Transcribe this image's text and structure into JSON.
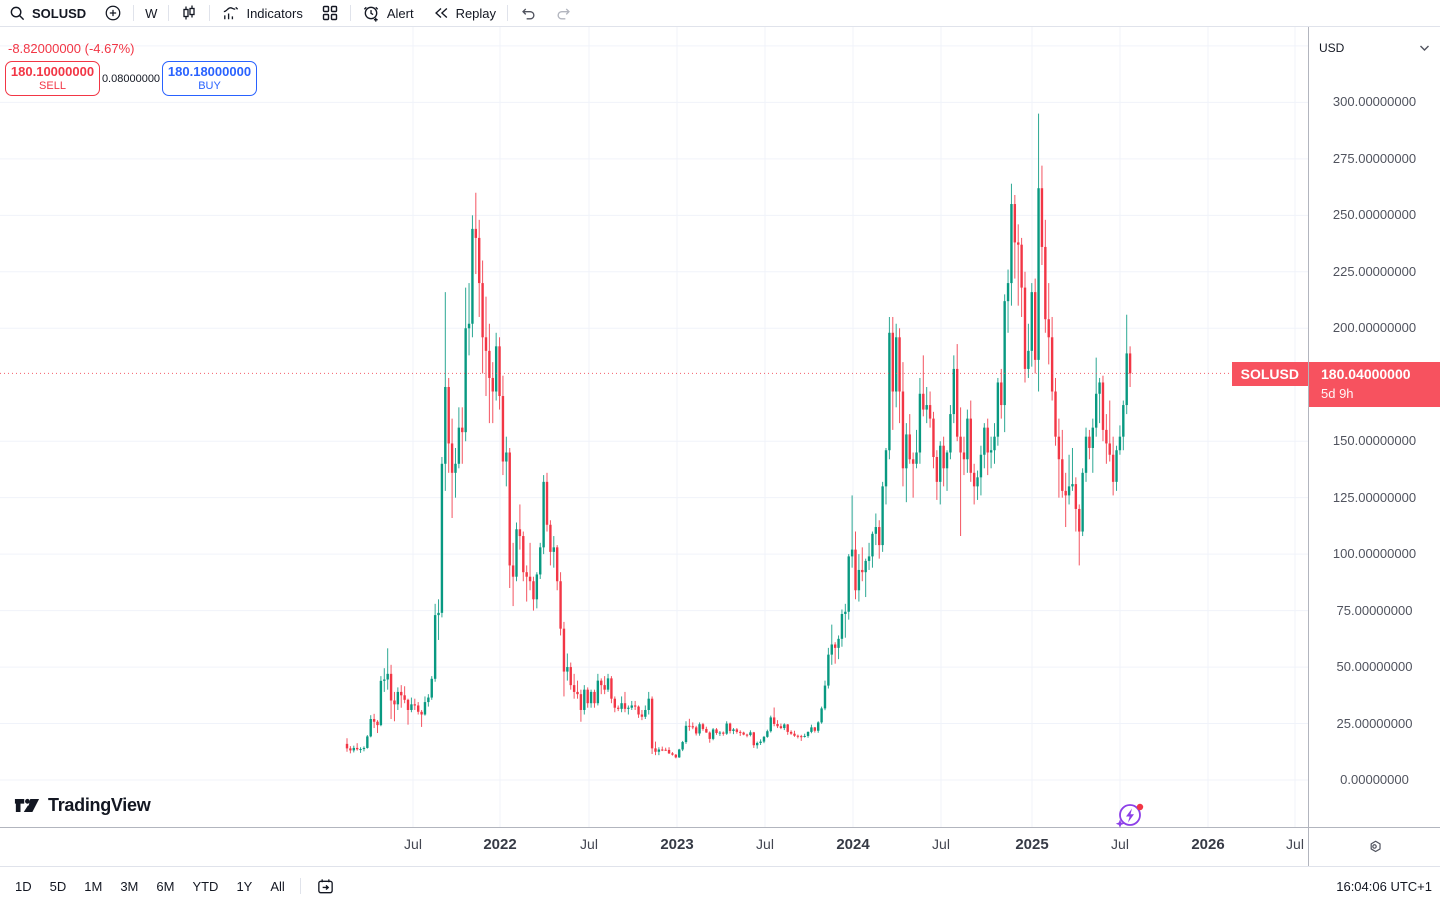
{
  "toolbar": {
    "symbol": "SOLUSD",
    "interval": "W",
    "indicators_label": "Indicators",
    "alert_label": "Alert",
    "replay_label": "Replay"
  },
  "quote": {
    "change_text": "-8.82000000 (-4.67%)",
    "sell_price": "180.10000000",
    "sell_label": "SELL",
    "spread": "0.08000000",
    "buy_price": "180.18000000",
    "buy_label": "BUY"
  },
  "price_axis": {
    "currency": "USD"
  },
  "last_price": {
    "symbol_label": "SOLUSD",
    "price": "180.04000000",
    "countdown": "5d 9h",
    "value": 180.04
  },
  "footer": {
    "ranges": [
      "1D",
      "5D",
      "1M",
      "3M",
      "6M",
      "YTD",
      "1Y",
      "All"
    ],
    "clock": "16:04:06 UTC+1"
  },
  "branding": {
    "logo_text": "TradingView"
  },
  "colors": {
    "up": "#089981",
    "down": "#f23645",
    "buy": "#2962ff",
    "sell": "#f23645",
    "badge": "#f7525f",
    "grid": "#f0f3fa",
    "axis_text": "#50535e"
  },
  "chart_data": {
    "type": "candlestick",
    "symbol": "SOLUSD",
    "interval": "W",
    "currency": "USD",
    "title": "SOLUSD weekly candlestick chart",
    "ylim": [
      0,
      330
    ],
    "grid": true,
    "last_price_value": 180.04,
    "y_ticks": [
      {
        "text": "300.00000000",
        "value": 300
      },
      {
        "text": "275.00000000",
        "value": 275
      },
      {
        "text": "250.00000000",
        "value": 250
      },
      {
        "text": "225.00000000",
        "value": 225
      },
      {
        "text": "200.00000000",
        "value": 200
      },
      {
        "text": "150.00000000",
        "value": 150
      },
      {
        "text": "125.00000000",
        "value": 125
      },
      {
        "text": "100.00000000",
        "value": 100
      },
      {
        "text": "75.00000000",
        "value": 75
      },
      {
        "text": "50.00000000",
        "value": 50
      },
      {
        "text": "25.00000000",
        "value": 25
      },
      {
        "text": "0.00000000",
        "value": 0
      }
    ],
    "x_ticks": [
      {
        "label": "Jul",
        "x": 413,
        "bold": false
      },
      {
        "label": "2022",
        "x": 500,
        "bold": true
      },
      {
        "label": "Jul",
        "x": 589,
        "bold": false
      },
      {
        "label": "2023",
        "x": 677,
        "bold": true
      },
      {
        "label": "Jul",
        "x": 765,
        "bold": false
      },
      {
        "label": "2024",
        "x": 853,
        "bold": true
      },
      {
        "label": "Jul",
        "x": 941,
        "bold": false
      },
      {
        "label": "2025",
        "x": 1032,
        "bold": true
      },
      {
        "label": "Jul",
        "x": 1120,
        "bold": false
      },
      {
        "label": "2026",
        "x": 1208,
        "bold": true
      },
      {
        "label": "Jul",
        "x": 1295,
        "bold": false
      }
    ],
    "layout": {
      "x_start": 347,
      "x_step": 3.39,
      "y_base": 753,
      "y_scale": 2.2587,
      "body_width": 2.4
    },
    "candles": [
      [
        16,
        18.5,
        12.5,
        14
      ],
      [
        14,
        15,
        11.8,
        13.1
      ],
      [
        13.1,
        15.2,
        12.2,
        14.2
      ],
      [
        14.2,
        16.3,
        13,
        13.6
      ],
      [
        13.6,
        14.5,
        12,
        13.7
      ],
      [
        13.7,
        14.9,
        12.7,
        14.2
      ],
      [
        14.2,
        19.9,
        13.9,
        19.3
      ],
      [
        19.3,
        28.7,
        18.9,
        27
      ],
      [
        27,
        29.3,
        23,
        25.8
      ],
      [
        25.8,
        26.5,
        20.8,
        24.3
      ],
      [
        24.3,
        46,
        23.8,
        43.9
      ],
      [
        43.9,
        49.5,
        39,
        44.5
      ],
      [
        44.5,
        58.3,
        40,
        47
      ],
      [
        47,
        51,
        27,
        35.2
      ],
      [
        35.2,
        39,
        26,
        33.5
      ],
      [
        33.5,
        41,
        31,
        39
      ],
      [
        39,
        42,
        32,
        37.5
      ],
      [
        37.5,
        41.5,
        34,
        35.5
      ],
      [
        35.5,
        36,
        24.5,
        31
      ],
      [
        31,
        36.5,
        30,
        33.5
      ],
      [
        33.5,
        36,
        31,
        33
      ],
      [
        33,
        34.5,
        29,
        30.2
      ],
      [
        30.2,
        31,
        23.5,
        29
      ],
      [
        29,
        37,
        28.5,
        34.5
      ],
      [
        34.5,
        38,
        32.5,
        36.5
      ],
      [
        36.5,
        46,
        35.5,
        44.8
      ],
      [
        44.8,
        78,
        43.5,
        73
      ],
      [
        73,
        80,
        62,
        74
      ],
      [
        74,
        143,
        72,
        140
      ],
      [
        140,
        216,
        128,
        174
      ],
      [
        174,
        178,
        136,
        149
      ],
      [
        149,
        160,
        116,
        136
      ],
      [
        136,
        147,
        125,
        140
      ],
      [
        140,
        165,
        138,
        156
      ],
      [
        156,
        165,
        140,
        154
      ],
      [
        154,
        218,
        150,
        200
      ],
      [
        200,
        220,
        188,
        202
      ],
      [
        202,
        250,
        196,
        244
      ],
      [
        244,
        260,
        224,
        240
      ],
      [
        240,
        248,
        205,
        220
      ],
      [
        220,
        230,
        180,
        196
      ],
      [
        196,
        214,
        170,
        190
      ],
      [
        190,
        202,
        158,
        178
      ],
      [
        178,
        185,
        158,
        172
      ],
      [
        172,
        198,
        168,
        192
      ],
      [
        192,
        196,
        164,
        170
      ],
      [
        170,
        179,
        135,
        141
      ],
      [
        141,
        152,
        130,
        145
      ],
      [
        145,
        147,
        85,
        95
      ],
      [
        95,
        105,
        77,
        90
      ],
      [
        90,
        114,
        88,
        111
      ],
      [
        111,
        122,
        102,
        108
      ],
      [
        108,
        110,
        88,
        92
      ],
      [
        92,
        95,
        79,
        90
      ],
      [
        90,
        105,
        84,
        88
      ],
      [
        88,
        90,
        75,
        80
      ],
      [
        80,
        92,
        76,
        91
      ],
      [
        91,
        105,
        89,
        103
      ],
      [
        103,
        135,
        100,
        132
      ],
      [
        132,
        136,
        110,
        113
      ],
      [
        113,
        115,
        95,
        101
      ],
      [
        101,
        108,
        94,
        103
      ],
      [
        103,
        104,
        84,
        88
      ],
      [
        88,
        92,
        64,
        67
      ],
      [
        67,
        70,
        37,
        48
      ],
      [
        48,
        56,
        44,
        50
      ],
      [
        50,
        52,
        40,
        42
      ],
      [
        42,
        47,
        36,
        39
      ],
      [
        39,
        44,
        36,
        38
      ],
      [
        38,
        40,
        25.8,
        31
      ],
      [
        31,
        42,
        29,
        40
      ],
      [
        40,
        41,
        32,
        34
      ],
      [
        34,
        40,
        32,
        39
      ],
      [
        39,
        40,
        32,
        34
      ],
      [
        34,
        47,
        33,
        44
      ],
      [
        44,
        45,
        38,
        42
      ],
      [
        42,
        46,
        38,
        40
      ],
      [
        40,
        47,
        39,
        45
      ],
      [
        45,
        46,
        34,
        36
      ],
      [
        36,
        37,
        30,
        32
      ],
      [
        32,
        33,
        30.5,
        31.5
      ],
      [
        31.5,
        37,
        30,
        34
      ],
      [
        34,
        39,
        30,
        31.5
      ],
      [
        31.5,
        33,
        29,
        32
      ],
      [
        32,
        35,
        31,
        33
      ],
      [
        33,
        35,
        31,
        32.5
      ],
      [
        32.5,
        33,
        27.5,
        29
      ],
      [
        29,
        31,
        26.5,
        28
      ],
      [
        28,
        33,
        27,
        31
      ],
      [
        31,
        39,
        29,
        36
      ],
      [
        36,
        37,
        11.5,
        14
      ],
      [
        14,
        17,
        11,
        12.5
      ],
      [
        12.5,
        14.5,
        11,
        13.5
      ],
      [
        13.5,
        14.8,
        12.8,
        13.4
      ],
      [
        13.4,
        14.3,
        12.9,
        13.3
      ],
      [
        13.3,
        14.5,
        11.5,
        11.8
      ],
      [
        11.8,
        12.4,
        10.8,
        11.2
      ],
      [
        11.2,
        11.5,
        9.6,
        10
      ],
      [
        10,
        13.8,
        9.8,
        13.5
      ],
      [
        13.5,
        17.3,
        12.8,
        16.8
      ],
      [
        16.8,
        26,
        16,
        24
      ],
      [
        24,
        27.1,
        21.8,
        23.8
      ],
      [
        23.8,
        25.5,
        22.5,
        23.3
      ],
      [
        23.3,
        24,
        19.7,
        20.6
      ],
      [
        20.6,
        25.5,
        19.6,
        24.7
      ],
      [
        24.7,
        25.3,
        21.8,
        22.6
      ],
      [
        22.6,
        23.6,
        20.9,
        21
      ],
      [
        21,
        21.5,
        16.5,
        18.2
      ],
      [
        18.2,
        23,
        17.6,
        22.4
      ],
      [
        22.4,
        23,
        20,
        20.8
      ],
      [
        20.8,
        21.7,
        19.5,
        21
      ],
      [
        21,
        21.5,
        19.6,
        20.5
      ],
      [
        20.5,
        26,
        20,
        25
      ],
      [
        25,
        25.4,
        20.6,
        21.7
      ],
      [
        21.7,
        23,
        20.3,
        22.4
      ],
      [
        22.4,
        23,
        20.5,
        21.3
      ],
      [
        21.3,
        22,
        19.5,
        21
      ],
      [
        21,
        21.4,
        19.8,
        20.1
      ],
      [
        20.1,
        20.5,
        18.9,
        19.9
      ],
      [
        19.9,
        22,
        19.3,
        21.1
      ],
      [
        21.1,
        21.3,
        14.2,
        15.4
      ],
      [
        15.4,
        17,
        13.9,
        16.4
      ],
      [
        16.4,
        18,
        15.5,
        17
      ],
      [
        17,
        19.5,
        16.3,
        19.1
      ],
      [
        19.1,
        22.3,
        18.7,
        21.6
      ],
      [
        21.6,
        28.5,
        21,
        27.7
      ],
      [
        27.7,
        32.1,
        23.8,
        24.8
      ],
      [
        24.8,
        26.5,
        23,
        23.8
      ],
      [
        23.8,
        25,
        22.5,
        23
      ],
      [
        23,
        25.1,
        22.1,
        24.6
      ],
      [
        24.6,
        24.8,
        20,
        21.3
      ],
      [
        21.3,
        22,
        20,
        20.5
      ],
      [
        20.5,
        21.8,
        19.1,
        19.6
      ],
      [
        19.6,
        20.1,
        18.4,
        19.4
      ],
      [
        19.4,
        20,
        17.3,
        19.3
      ],
      [
        19.3,
        20.5,
        18.8,
        19.5
      ],
      [
        19.5,
        21.5,
        18.7,
        21.3
      ],
      [
        21.3,
        24.5,
        20.7,
        23.3
      ],
      [
        23.3,
        23.5,
        21,
        21.8
      ],
      [
        21.8,
        26,
        20.9,
        25.5
      ],
      [
        25.5,
        32.5,
        24.9,
        31.7
      ],
      [
        31.7,
        44,
        30.9,
        41.8
      ],
      [
        41.8,
        58.5,
        40.5,
        55.5
      ],
      [
        55.5,
        68.8,
        51,
        60
      ],
      [
        60,
        61,
        51.5,
        58.5
      ],
      [
        58.5,
        64,
        53.5,
        62.5
      ],
      [
        62.5,
        75.5,
        59,
        73.5
      ],
      [
        73.5,
        78,
        63,
        74.5
      ],
      [
        74.5,
        100,
        71,
        99
      ],
      [
        99,
        126,
        94,
        102
      ],
      [
        102,
        110,
        80,
        84
      ],
      [
        84,
        100,
        79,
        93
      ],
      [
        93,
        103,
        88,
        92
      ],
      [
        92,
        98,
        81,
        97
      ],
      [
        97,
        105,
        93,
        99
      ],
      [
        99,
        110,
        94,
        109
      ],
      [
        109,
        118,
        104,
        112
      ],
      [
        112,
        115,
        98,
        104
      ],
      [
        104,
        132,
        101,
        130
      ],
      [
        130,
        147,
        122,
        146
      ],
      [
        146,
        205,
        142,
        198
      ],
      [
        198,
        205,
        155,
        172
      ],
      [
        172,
        202,
        165,
        196
      ],
      [
        196,
        200,
        158,
        172
      ],
      [
        172,
        185,
        130,
        138
      ],
      [
        138,
        158,
        123,
        153
      ],
      [
        153,
        162,
        140,
        142
      ],
      [
        142,
        145,
        125,
        140
      ],
      [
        140,
        155,
        138,
        145
      ],
      [
        145,
        178,
        140,
        171
      ],
      [
        171,
        188,
        161,
        164
      ],
      [
        164,
        174,
        158,
        166
      ],
      [
        166,
        172,
        156,
        160
      ],
      [
        160,
        163,
        138,
        143
      ],
      [
        143,
        146,
        124,
        132
      ],
      [
        132,
        150,
        122,
        148
      ],
      [
        148,
        152,
        130,
        138
      ],
      [
        138,
        146,
        128,
        145
      ],
      [
        145,
        166,
        142,
        162
      ],
      [
        162,
        188,
        158,
        182
      ],
      [
        182,
        193,
        150,
        152
      ],
      [
        152,
        165,
        108,
        145
      ],
      [
        145,
        152,
        135,
        142
      ],
      [
        142,
        164,
        136,
        160
      ],
      [
        160,
        168,
        132,
        136
      ],
      [
        136,
        140,
        122,
        130
      ],
      [
        130,
        137,
        124,
        134
      ],
      [
        134,
        148,
        126,
        144
      ],
      [
        144,
        158,
        138,
        156
      ],
      [
        156,
        160,
        135,
        145
      ],
      [
        145,
        152,
        138,
        146
      ],
      [
        146,
        158,
        140,
        152
      ],
      [
        152,
        178,
        148,
        176
      ],
      [
        176,
        182,
        160,
        166
      ],
      [
        166,
        215,
        154,
        212
      ],
      [
        212,
        226,
        198,
        220
      ],
      [
        220,
        264,
        210,
        255
      ],
      [
        255,
        259,
        222,
        238
      ],
      [
        238,
        246,
        210,
        237
      ],
      [
        237,
        240,
        205,
        218
      ],
      [
        218,
        225,
        176,
        182
      ],
      [
        182,
        202,
        178,
        190
      ],
      [
        190,
        220,
        183,
        216
      ],
      [
        216,
        222,
        180,
        186
      ],
      [
        186,
        295,
        172,
        262
      ],
      [
        262,
        272,
        228,
        236
      ],
      [
        236,
        248,
        198,
        204
      ],
      [
        204,
        220,
        184,
        196
      ],
      [
        196,
        205,
        168,
        172
      ],
      [
        172,
        178,
        148,
        152
      ],
      [
        152,
        160,
        125,
        142
      ],
      [
        142,
        155,
        125,
        128
      ],
      [
        128,
        136,
        112,
        126
      ],
      [
        126,
        144,
        122,
        130
      ],
      [
        130,
        147,
        128,
        131
      ],
      [
        131,
        134,
        110,
        120
      ],
      [
        120,
        122,
        95,
        110
      ],
      [
        110,
        138,
        108,
        136
      ],
      [
        136,
        156,
        132,
        152
      ],
      [
        152,
        155,
        142,
        147
      ],
      [
        147,
        160,
        136,
        156
      ],
      [
        156,
        187,
        152,
        171
      ],
      [
        171,
        178,
        158,
        176
      ],
      [
        176,
        179,
        150,
        155
      ],
      [
        155,
        162,
        140,
        149
      ],
      [
        149,
        168,
        141,
        144
      ],
      [
        144,
        152,
        126,
        132
      ],
      [
        132,
        148,
        128,
        146
      ],
      [
        146,
        157,
        144,
        152
      ],
      [
        152,
        168,
        146,
        166
      ],
      [
        166,
        206,
        162,
        188.86
      ],
      [
        188.86,
        192,
        174,
        180.04
      ]
    ]
  }
}
